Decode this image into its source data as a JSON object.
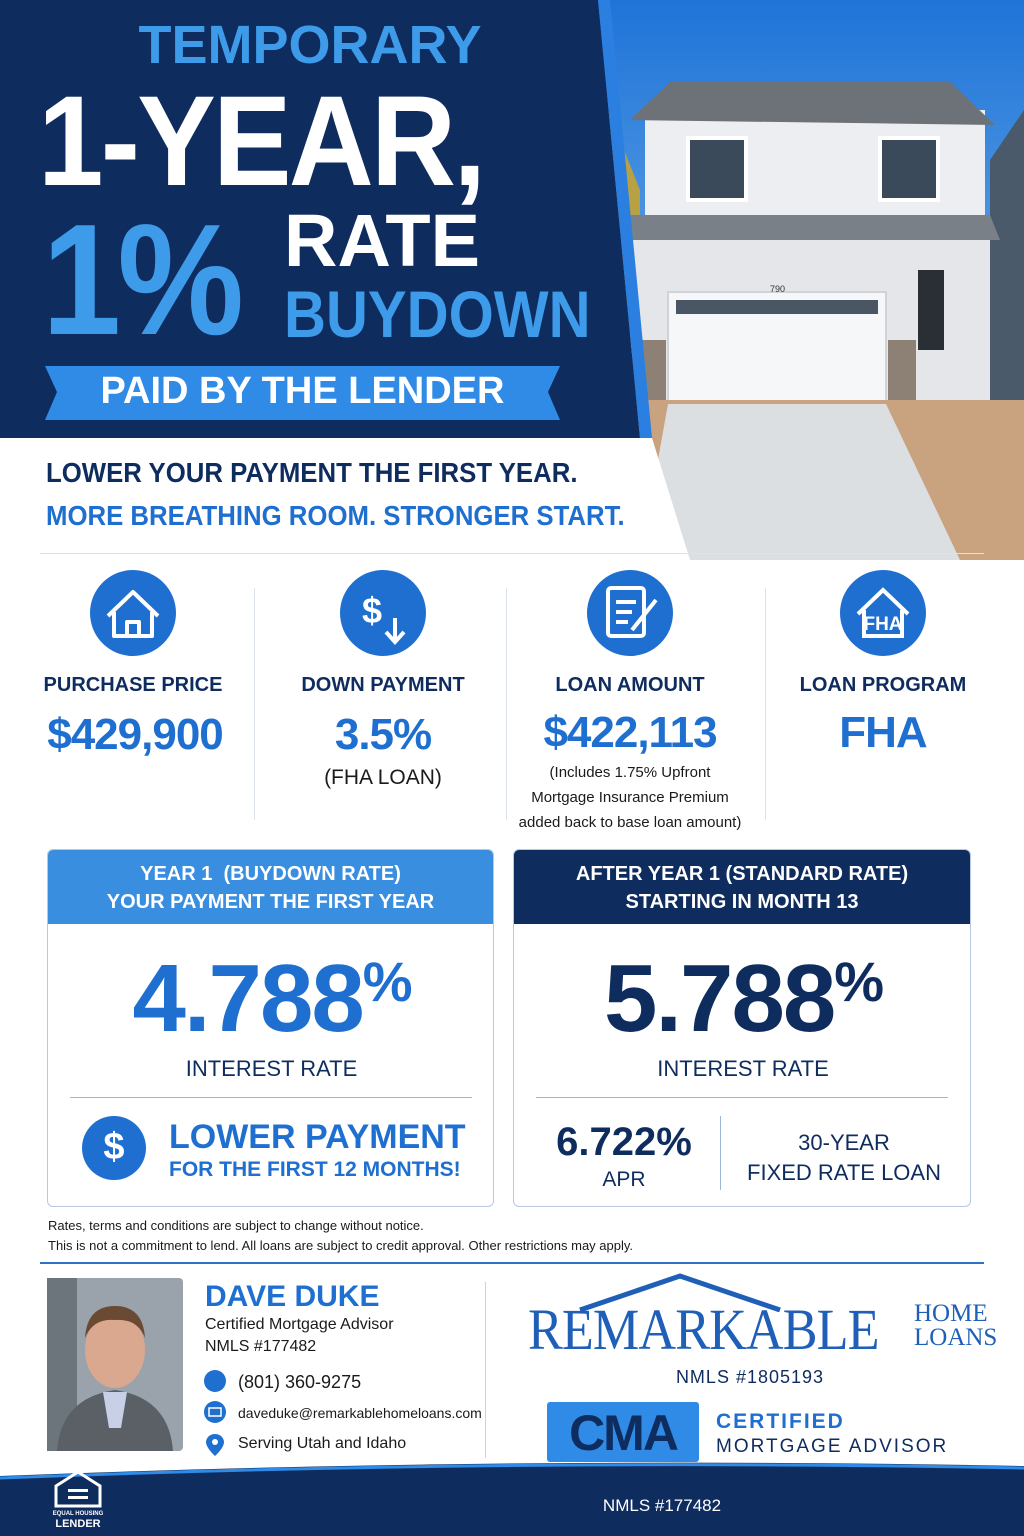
{
  "header": {
    "line1": "TEMPORARY",
    "line2": "1-YEAR,",
    "big": "1%",
    "rate": "RATE",
    "buydown": "BUYDOWN",
    "banner": "PAID BY THE LENDER"
  },
  "tagline": [
    "LOWER YOUR PAYMENT THE FIRST YEAR.",
    "MORE BREATHING ROOM. STRONGER START."
  ],
  "house_number": "790",
  "stats": [
    {
      "label": "PURCHASE PRICE",
      "value": "$429,900"
    },
    {
      "icon_text": "$",
      "label": "DOWN PAYMENT",
      "value": "3.5%",
      "note": [
        "(FHA LOAN)"
      ]
    },
    {
      "label": "LOAN AMOUNT",
      "value": "$422,113",
      "note": [
        "(Includes 1.75% Upfront",
        "Mortgage Insurance Premium",
        "added back to base loan amount)"
      ]
    },
    {
      "icon_text": "FHA",
      "label": "LOAN PROGRAM",
      "value": "FHA"
    }
  ],
  "year1": {
    "header": [
      "YEAR 1  (BUYDOWN RATE)",
      "YOUR PAYMENT THE FIRST YEAR"
    ],
    "rate": "4.788",
    "unit": "%",
    "rate_label": "INTEREST RATE",
    "icon_text": "$",
    "callout": "LOWER PAYMENT",
    "callout_sub": "FOR THE FIRST 12 MONTHS!"
  },
  "after": {
    "header": [
      "AFTER YEAR 1 (STANDARD RATE)",
      "STARTING IN MONTH 13"
    ],
    "rate": "5.788",
    "unit": "%",
    "rate_label": "INTEREST RATE",
    "apr": "6.722%",
    "apr_label": "APR",
    "term": [
      "30-YEAR",
      "FIXED RATE LOAN"
    ]
  },
  "disclaimer": [
    "Rates, terms and conditions are subject to change without notice.",
    "This is not a commitment to lend. All loans are subject to credit approval. Other restrictions may apply."
  ],
  "advisor": {
    "name": "DAVE DUKE",
    "title": "Certified Mortgage Advisor",
    "nmls": "NMLS #177482",
    "phone": "(801) 360-9275",
    "email": "daveduke@remarkablehomeloans.com",
    "area": "Serving Utah and Idaho"
  },
  "company": {
    "name": "REMARKABLE",
    "name2": [
      "HOME",
      "LOANS"
    ],
    "nmls": "NMLS #1805193",
    "badge": "CMA",
    "cert": [
      "CERTIFIED",
      "MORTGAGE ADVISOR"
    ]
  },
  "footer": {
    "ehl": [
      "EQUAL HOUSING",
      "LENDER"
    ],
    "nmls": "NMLS #177482"
  }
}
